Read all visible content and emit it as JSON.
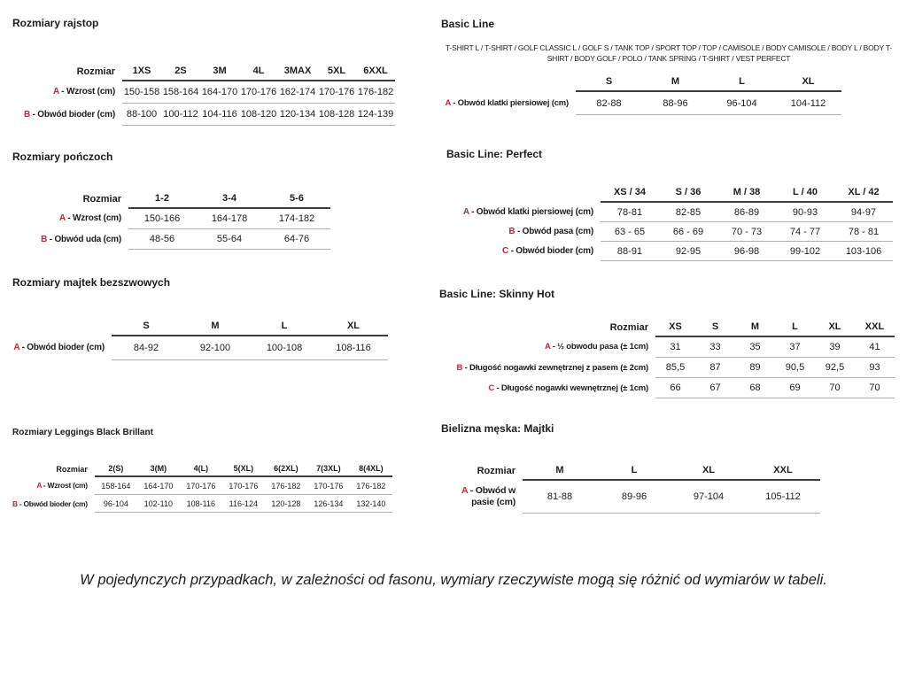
{
  "colors": {
    "accent_red": "#c1272d",
    "text": "#1c1c1c",
    "rule_dark": "#3c3c3c",
    "rule_light": "#b0b0b0"
  },
  "footer_note": "W pojedynczych przypadkach, w zależności od fasonu, wymiary rzeczywiste mogą się różnić od wymiarów w tabeli.",
  "sections": {
    "rajstop": {
      "title": "Rozmiary rajstop",
      "table": {
        "corner": "Rozmiar",
        "columns": [
          "1XS",
          "2S",
          "3M",
          "4L",
          "3MAX",
          "5XL",
          "6XXL"
        ],
        "rows": [
          {
            "letter": "A",
            "label": "Wzrost (cm)",
            "values": [
              "150-158",
              "158-164",
              "164-170",
              "170-176",
              "162-174",
              "170-176",
              "176-182"
            ]
          },
          {
            "letter": "B",
            "label": "Obwód bioder (cm)",
            "values": [
              "88-100",
              "100-112",
              "104-116",
              "108-120",
              "120-134",
              "108-128",
              "124-139"
            ]
          }
        ]
      }
    },
    "ponczoch": {
      "title": "Rozmiary pończoch",
      "table": {
        "corner": "Rozmiar",
        "columns": [
          "1-2",
          "3-4",
          "5-6"
        ],
        "rows": [
          {
            "letter": "A",
            "label": "Wzrost (cm)",
            "values": [
              "150-166",
              "164-178",
              "174-182"
            ]
          },
          {
            "letter": "B",
            "label": "Obwód uda (cm)",
            "values": [
              "48-56",
              "55-64",
              "64-76"
            ]
          }
        ]
      }
    },
    "majtek": {
      "title": "Rozmiary majtek bezszwowych",
      "table": {
        "corner": "",
        "columns": [
          "S",
          "M",
          "L",
          "XL"
        ],
        "rows": [
          {
            "letter": "A",
            "label": "Obwód bioder (cm)",
            "values": [
              "84-92",
              "92-100",
              "100-108",
              "108-116"
            ]
          }
        ]
      }
    },
    "leggings": {
      "title": "Rozmiary Leggings Black Brillant",
      "table": {
        "corner": "Rozmiar",
        "columns": [
          "2(S)",
          "3(M)",
          "4(L)",
          "5(XL)",
          "6(2XL)",
          "7(3XL)",
          "8(4XL)"
        ],
        "rows": [
          {
            "letter": "A",
            "label": "Wzrost (cm)",
            "values": [
              "158-164",
              "164-170",
              "170-176",
              "170-176",
              "176-182",
              "170-176",
              "176-182"
            ]
          },
          {
            "letter": "B",
            "label": "Obwód bioder (cm)",
            "values": [
              "96-104",
              "102-110",
              "108-116",
              "116-124",
              "120-128",
              "126-134",
              "132-140"
            ]
          }
        ]
      }
    },
    "basic": {
      "title": "Basic Line",
      "subtitle": "T-SHIRT L / T-SHIRT / GOLF CLASSIC L / GOLF S / TANK TOP / SPORT TOP / TOP / CAMISOLE / BODY CAMISOLE / BODY L / BODY T-SHIRT / BODY GOLF / POLO / TANK SPRING / T-SHIRT / VEST PERFECT",
      "table": {
        "corner": "",
        "columns": [
          "S",
          "M",
          "L",
          "XL"
        ],
        "rows": [
          {
            "letter": "A",
            "label": "Obwód klatki piersiowej (cm)",
            "values": [
              "82-88",
              "88-96",
              "96-104",
              "104-112"
            ]
          }
        ]
      }
    },
    "perfect": {
      "title": "Basic Line: Perfect",
      "table": {
        "corner": "",
        "columns": [
          "XS / 34",
          "S / 36",
          "M / 38",
          "L / 40",
          "XL / 42"
        ],
        "rows": [
          {
            "letter": "A",
            "label": "Obwód klatki piersiowej (cm)",
            "values": [
              "78-81",
              "82-85",
              "86-89",
              "90-93",
              "94-97"
            ]
          },
          {
            "letter": "B",
            "label": "Obwód pasa (cm)",
            "values": [
              "63 - 65",
              "66 - 69",
              "70 - 73",
              "74 - 77",
              "78 - 81"
            ]
          },
          {
            "letter": "C",
            "label": "Obwód bioder (cm)",
            "values": [
              "88-91",
              "92-95",
              "96-98",
              "99-102",
              "103-106"
            ]
          }
        ]
      }
    },
    "skinny": {
      "title": "Basic Line: Skinny Hot",
      "table": {
        "corner": "Rozmiar",
        "columns": [
          "XS",
          "S",
          "M",
          "L",
          "XL",
          "XXL"
        ],
        "rows": [
          {
            "letter": "A",
            "label": "½ obwodu pasa (± 1cm)",
            "values": [
              "31",
              "33",
              "35",
              "37",
              "39",
              "41"
            ]
          },
          {
            "letter": "B",
            "label": "Długość nogawki zewnętrznej z pasem (± 2cm)",
            "values": [
              "85,5",
              "87",
              "89",
              "90,5",
              "92,5",
              "93"
            ]
          },
          {
            "letter": "C",
            "label": "Długość nogawki wewnętrznej (± 1cm)",
            "values": [
              "66",
              "67",
              "68",
              "69",
              "70",
              "70"
            ]
          }
        ]
      }
    },
    "majtki": {
      "title": "Bielizna męska: Majtki",
      "table": {
        "corner": "Rozmiar",
        "columns": [
          "M",
          "L",
          "XL",
          "XXL"
        ],
        "rows": [
          {
            "letter": "A",
            "label": "Obwód w pasie (cm)",
            "values": [
              "81-88",
              "89-96",
              "97-104",
              "105-112"
            ]
          }
        ]
      }
    }
  }
}
